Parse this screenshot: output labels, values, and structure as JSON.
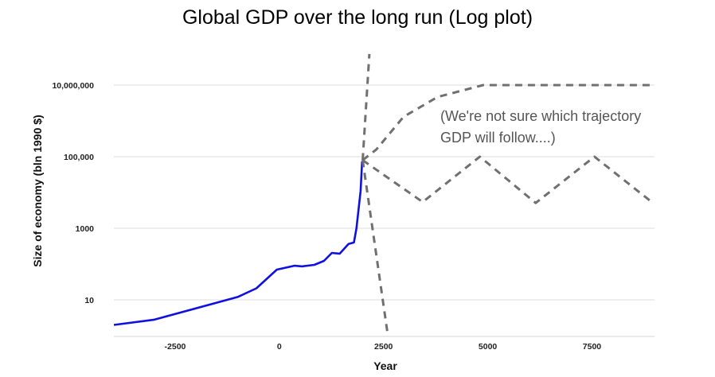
{
  "chart_data": {
    "type": "line",
    "title": "Global GDP over the long run (Log plot)",
    "xlabel": "Year",
    "ylabel": "Size of economy (bln 1990 $)",
    "xlim": [
      -3970,
      9000
    ],
    "ylim": [
      1,
      100000000
    ],
    "yscale": "log",
    "grid": true,
    "x_ticks": [
      {
        "value": -2500,
        "label": "-2500"
      },
      {
        "value": 0,
        "label": "0"
      },
      {
        "value": 2500,
        "label": "2500"
      },
      {
        "value": 5000,
        "label": "5000"
      },
      {
        "value": 7500,
        "label": "7500"
      }
    ],
    "y_ticks": [
      {
        "value": 10,
        "label": "10"
      },
      {
        "value": 1000,
        "label": "1000"
      },
      {
        "value": 100000,
        "label": "100,000"
      },
      {
        "value": 10000000,
        "label": "10,000,000"
      }
    ],
    "annotation": {
      "lines": [
        "(We're not sure which trajectory",
        "GDP will follow....)"
      ],
      "x": 4000,
      "y": [
        1500000,
        400000
      ]
    },
    "series": [
      {
        "style": "solid",
        "color": "#1010e0",
        "x": [
          -3970,
          -3000,
          -1000,
          -550,
          -60,
          360,
          550,
          840,
          1070,
          1260,
          1450,
          1660,
          1790,
          1850,
          1950,
          1985
        ],
        "y": [
          2.0,
          2.8,
          12,
          21,
          70,
          90,
          86,
          95,
          123,
          205,
          195,
          365,
          400,
          1000,
          11000,
          74000
        ]
      },
      {
        "style": "dashed",
        "color": "#707070",
        "x": [
          2000,
          2160
        ],
        "y": [
          80000,
          74000000
        ]
      },
      {
        "style": "dashed",
        "color": "#707070",
        "x": [
          2000,
          2600
        ],
        "y": [
          80000,
          1.1
        ]
      },
      {
        "style": "dashed",
        "color": "#707070",
        "x": [
          2000,
          2330,
          2980,
          3800,
          4890,
          8950
        ],
        "y": [
          80000,
          160000,
          1300000,
          4700000,
          10000000,
          10000000
        ]
      },
      {
        "style": "dashed",
        "color": "#707070",
        "x": [
          2000,
          3440,
          4810,
          6150,
          7560,
          8910
        ],
        "y": [
          80000,
          5400,
          100000,
          5100,
          100000,
          5700
        ]
      }
    ]
  }
}
